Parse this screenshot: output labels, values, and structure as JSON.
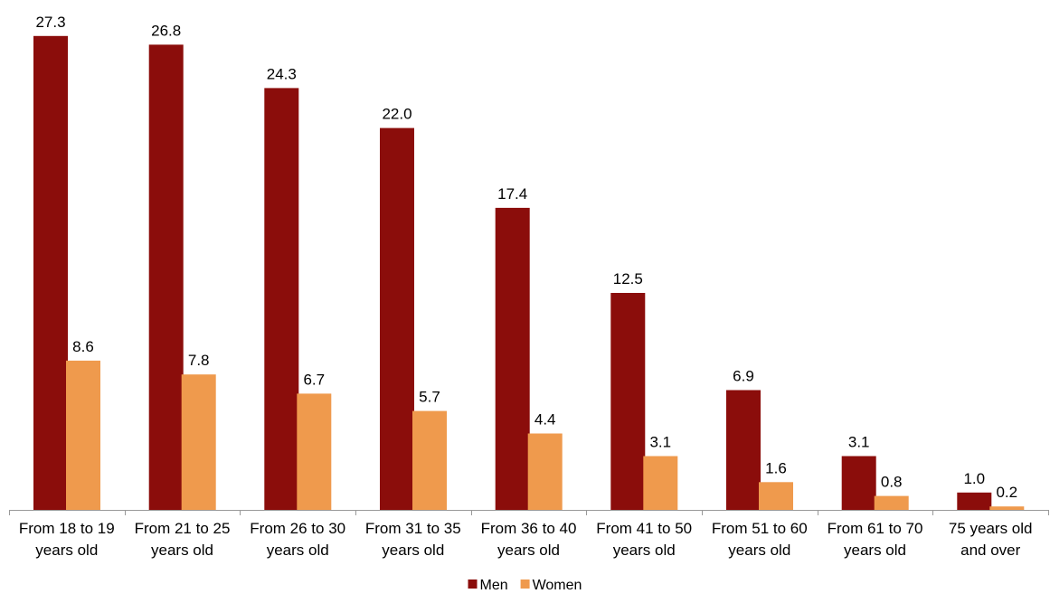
{
  "chart_data": {
    "type": "bar",
    "categories": [
      [
        "From 18 to 19",
        "years old"
      ],
      [
        "From 21 to 25",
        "years old"
      ],
      [
        "From 26 to 30",
        "years old"
      ],
      [
        "From 31 to 35",
        "years old"
      ],
      [
        "From 36 to 40",
        "years old"
      ],
      [
        "From 41 to 50",
        "years old"
      ],
      [
        "From 51 to 60",
        "years old"
      ],
      [
        "From 61 to 70",
        "years old"
      ],
      [
        "75 years old",
        "and over"
      ]
    ],
    "series": [
      {
        "name": "Men",
        "color": "#8b0d0b",
        "values": [
          27.3,
          26.8,
          24.3,
          22.0,
          17.4,
          12.5,
          6.9,
          3.1,
          1.0
        ],
        "labels": [
          "27.3",
          "26.8",
          "24.3",
          "22.0",
          "17.4",
          "12.5",
          "6.9",
          "3.1",
          "1.0"
        ]
      },
      {
        "name": "Women",
        "color": "#ef9a4d",
        "values": [
          8.6,
          7.8,
          6.7,
          5.7,
          4.4,
          3.1,
          1.6,
          0.8,
          0.2
        ],
        "labels": [
          "8.6",
          "7.8",
          "6.7",
          "5.7",
          "4.4",
          "3.1",
          "1.6",
          "0.8",
          "0.2"
        ]
      }
    ],
    "title": "",
    "xlabel": "",
    "ylabel": "",
    "ylim": [
      0,
      30
    ],
    "grid": false,
    "legend_position": "bottom-center",
    "axis_color": "#999999"
  }
}
